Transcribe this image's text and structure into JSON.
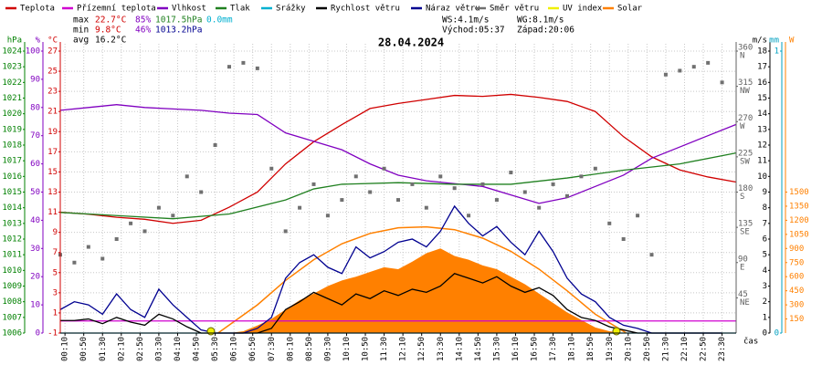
{
  "chart_data": {
    "type": "line",
    "title": "28.04.2024",
    "stats": {
      "max": {
        "label": "max",
        "temp": "22.7°C",
        "hum": "85%",
        "press": "1017.5hPa",
        "rain": "0.0mm"
      },
      "min": {
        "label": "min",
        "temp": "9.8°C",
        "hum": "46%",
        "press": "1013.2hPa"
      },
      "avg": {
        "label": "avg",
        "temp": "16.2°C"
      },
      "ws": "WS:4.1m/s",
      "wg": "WG:8.1m/s",
      "sunrise": "Východ:05:37",
      "sunset": "Západ:20:06"
    },
    "x_label": "čas",
    "xlim": [
      0,
      24
    ],
    "xticks": [
      {
        "value": 0.1667,
        "label": "00:10"
      },
      {
        "value": 0.8333,
        "label": "00:50"
      },
      {
        "value": 1.5,
        "label": "01:30"
      },
      {
        "value": 2.1667,
        "label": "02:10"
      },
      {
        "value": 2.8333,
        "label": "02:50"
      },
      {
        "value": 3.5,
        "label": "03:30"
      },
      {
        "value": 4.1667,
        "label": "04:10"
      },
      {
        "value": 4.8333,
        "label": "04:50"
      },
      {
        "value": 5.5,
        "label": "05:30"
      },
      {
        "value": 6.1667,
        "label": "06:10"
      },
      {
        "value": 6.8333,
        "label": "06:50"
      },
      {
        "value": 7.5,
        "label": "07:30"
      },
      {
        "value": 8.1667,
        "label": "08:10"
      },
      {
        "value": 8.8333,
        "label": "08:50"
      },
      {
        "value": 9.5,
        "label": "09:30"
      },
      {
        "value": 10.1667,
        "label": "10:10"
      },
      {
        "value": 10.8333,
        "label": "10:50"
      },
      {
        "value": 11.5,
        "label": "11:30"
      },
      {
        "value": 12.1667,
        "label": "12:10"
      },
      {
        "value": 12.8333,
        "label": "12:50"
      },
      {
        "value": 13.5,
        "label": "13:30"
      },
      {
        "value": 14.1667,
        "label": "14:10"
      },
      {
        "value": 14.8333,
        "label": "14:50"
      },
      {
        "value": 15.5,
        "label": "15:30"
      },
      {
        "value": 16.1667,
        "label": "16:10"
      },
      {
        "value": 16.8333,
        "label": "16:50"
      },
      {
        "value": 17.5,
        "label": "17:30"
      },
      {
        "value": 18.1667,
        "label": "18:10"
      },
      {
        "value": 18.8333,
        "label": "18:50"
      },
      {
        "value": 19.5,
        "label": "19:30"
      },
      {
        "value": 20.1667,
        "label": "20:10"
      },
      {
        "value": 20.8333,
        "label": "20:50"
      },
      {
        "value": 21.5,
        "label": "21:30"
      },
      {
        "value": 22.1667,
        "label": "22:10"
      },
      {
        "value": 22.8333,
        "label": "22:50"
      },
      {
        "value": 23.5,
        "label": "23:30"
      }
    ],
    "grid": true,
    "axes": [
      {
        "label": "hPa",
        "color": "#008000",
        "lim": [
          1006,
          1024
        ],
        "ticks": [
          1006,
          1007,
          1008,
          1009,
          1010,
          1011,
          1012,
          1013,
          1014,
          1015,
          1016,
          1017,
          1018,
          1019,
          1020,
          1021,
          1022,
          1023,
          1024
        ]
      },
      {
        "label": "%",
        "color": "#8000c0",
        "lim": [
          0,
          100
        ],
        "ticks": [
          0,
          10,
          20,
          30,
          40,
          50,
          60,
          70,
          80,
          90,
          100
        ]
      },
      {
        "label": "°C",
        "color": "#d00000",
        "lim": [
          -1,
          27
        ],
        "ticks": [
          -1,
          1,
          3,
          5,
          7,
          9,
          11,
          13,
          15,
          17,
          19,
          21,
          23,
          25,
          27
        ]
      },
      {
        "color": "#606060",
        "lim": [
          0,
          360
        ],
        "ticks": [
          45,
          90,
          135,
          180,
          225,
          270,
          315,
          360
        ],
        "compass": [
          "NE",
          "E",
          "SE",
          "S",
          "SW",
          "W",
          "NW",
          "N"
        ]
      },
      {
        "label": "m/s",
        "color": "#000000",
        "lim": [
          0,
          18
        ],
        "ticks": [
          0,
          1,
          2,
          3,
          4,
          5,
          6,
          7,
          8,
          9,
          10,
          11,
          12,
          13,
          14,
          15,
          16,
          17,
          18
        ]
      },
      {
        "label": "mm",
        "color": "#00a0c0",
        "lim": [
          0,
          1
        ],
        "ticks": [
          0,
          1
        ]
      },
      {
        "label": "W",
        "color": "#ff8000",
        "lim": [
          0,
          3000
        ],
        "ticks": [
          150,
          300,
          450,
          600,
          750,
          900,
          1050,
          1200,
          1350,
          1500
        ]
      },
      {
        "color": "#e0e000",
        "lim": [
          0,
          10
        ],
        "ticks": []
      }
    ],
    "x": [
      0,
      0.5,
      1,
      1.5,
      2,
      2.5,
      3,
      3.5,
      4,
      4.5,
      5,
      5.5,
      6,
      6.5,
      7,
      7.5,
      8,
      8.5,
      9,
      9.5,
      10,
      10.5,
      11,
      11.5,
      12,
      12.5,
      13,
      13.5,
      14,
      14.5,
      15,
      15.5,
      16,
      16.5,
      17,
      17.5,
      18,
      18.5,
      19,
      19.5,
      20,
      20.5,
      21,
      21.5,
      22,
      22.5,
      23,
      23.5
    ],
    "series": [
      {
        "name": "Teplota",
        "color": "#d00000",
        "axis": 2,
        "kind": "line",
        "x": [
          0,
          1,
          2,
          3,
          4,
          5,
          6,
          7,
          8,
          9,
          10,
          11,
          12,
          13,
          14,
          15,
          16,
          17,
          18,
          19,
          20,
          21,
          22,
          23,
          24
        ],
        "values": [
          11,
          10.8,
          10.5,
          10.3,
          9.9,
          10.2,
          11.5,
          13,
          15.8,
          18,
          19.7,
          21.3,
          21.8,
          22.2,
          22.6,
          22.5,
          22.7,
          22.4,
          22,
          21,
          18.5,
          16.5,
          15.2,
          14.5,
          14
        ]
      },
      {
        "name": "Přízemní teplota",
        "color": "#d000d0",
        "axis": 2,
        "kind": "line",
        "x": [
          0,
          24
        ],
        "values": [
          0.2,
          0.2
        ]
      },
      {
        "name": "Vlhkost",
        "color": "#8000c0",
        "axis": 1,
        "kind": "line",
        "x": [
          0,
          1,
          2,
          3,
          4,
          5,
          6,
          7,
          8,
          9,
          10,
          11,
          12,
          13,
          14,
          15,
          16,
          17,
          18,
          19,
          20,
          21,
          22,
          23,
          24
        ],
        "values": [
          79,
          80,
          81,
          80,
          79.5,
          79,
          78,
          77.5,
          71,
          68,
          65,
          60,
          56,
          54,
          53,
          52,
          49,
          46,
          48,
          52,
          56,
          62,
          66,
          70,
          74
        ]
      },
      {
        "name": "Tlak",
        "color": "#208020",
        "axis": 0,
        "kind": "line",
        "x": [
          0,
          2,
          4,
          6,
          8,
          9,
          10,
          12,
          14,
          16,
          18,
          20,
          22,
          24
        ],
        "values": [
          1013.7,
          1013.5,
          1013.3,
          1013.6,
          1014.5,
          1015.2,
          1015.5,
          1015.6,
          1015.5,
          1015.5,
          1015.9,
          1016.4,
          1016.8,
          1017.5
        ]
      },
      {
        "name": "Srážky",
        "color": "#00b0d0",
        "axis": 5,
        "kind": "line",
        "x": [
          0,
          24
        ],
        "values": [
          0,
          0
        ]
      },
      {
        "name": "Rychlost větru",
        "color": "#000000",
        "axis": 4,
        "kind": "line",
        "values": [
          0.8,
          0.8,
          0.9,
          0.6,
          1.0,
          0.7,
          0.5,
          1.2,
          0.9,
          0.4,
          0,
          0,
          0,
          0,
          0,
          0.3,
          1.5,
          2.0,
          2.6,
          2.2,
          1.8,
          2.5,
          2.2,
          2.7,
          2.4,
          2.8,
          2.6,
          3.0,
          3.8,
          3.5,
          3.2,
          3.6,
          3.0,
          2.6,
          2.9,
          2.4,
          1.5,
          1.0,
          0.8,
          0.4,
          0.2,
          0,
          0,
          0,
          0,
          0,
          0,
          0
        ]
      },
      {
        "name": "Náraz větru",
        "color": "#000090",
        "axis": 4,
        "kind": "line",
        "values": [
          1.5,
          2.0,
          1.8,
          1.2,
          2.5,
          1.5,
          1.0,
          2.8,
          1.8,
          1.0,
          0.2,
          0,
          0,
          0,
          0.3,
          1.0,
          3.5,
          4.5,
          5.0,
          4.2,
          3.8,
          5.5,
          4.8,
          5.2,
          5.8,
          6.0,
          5.5,
          6.5,
          8.1,
          7.0,
          6.2,
          6.8,
          5.8,
          5.0,
          6.5,
          5.2,
          3.5,
          2.5,
          2.0,
          1.0,
          0.5,
          0.3,
          0,
          0,
          0,
          0,
          0,
          0
        ]
      },
      {
        "name": "Směr větru",
        "color": "#707070",
        "axis": 3,
        "kind": "scatter",
        "values": [
          100,
          90,
          110,
          95,
          120,
          140,
          130,
          160,
          150,
          200,
          180,
          240,
          340,
          345,
          338,
          210,
          130,
          160,
          190,
          150,
          170,
          200,
          180,
          210,
          170,
          190,
          160,
          200,
          185,
          150,
          190,
          170,
          205,
          180,
          160,
          190,
          175,
          200,
          210,
          140,
          120,
          150,
          100,
          330,
          335,
          340,
          345,
          320
        ]
      },
      {
        "name": "UV index",
        "color": "#f0f000",
        "axis": 7,
        "kind": "points",
        "x": [
          5.35,
          19.75
        ],
        "values": [
          0,
          0
        ]
      },
      {
        "name": "Solar",
        "color": "#ff8000",
        "axis": 6,
        "kind": "area",
        "x": [
          6,
          6.5,
          7,
          7.5,
          8,
          8.5,
          9,
          9.5,
          10,
          10.5,
          11,
          11.5,
          12,
          12.5,
          13,
          13.5,
          14,
          14.5,
          15,
          15.5,
          16,
          16.5,
          17,
          17.5,
          18,
          18.5,
          19,
          19.5,
          20
        ],
        "values": [
          0,
          20,
          80,
          150,
          250,
          350,
          420,
          500,
          560,
          600,
          650,
          700,
          680,
          760,
          850,
          900,
          820,
          780,
          720,
          680,
          600,
          520,
          420,
          320,
          220,
          140,
          60,
          20,
          0
        ],
        "clear_sky_x": [
          5.6,
          7,
          8,
          9,
          10,
          11,
          12,
          13,
          14,
          15,
          16,
          17,
          18,
          19,
          20.1
        ],
        "clear_sky": [
          0,
          300,
          560,
          780,
          950,
          1060,
          1120,
          1130,
          1100,
          1010,
          870,
          680,
          450,
          200,
          0
        ]
      }
    ]
  }
}
